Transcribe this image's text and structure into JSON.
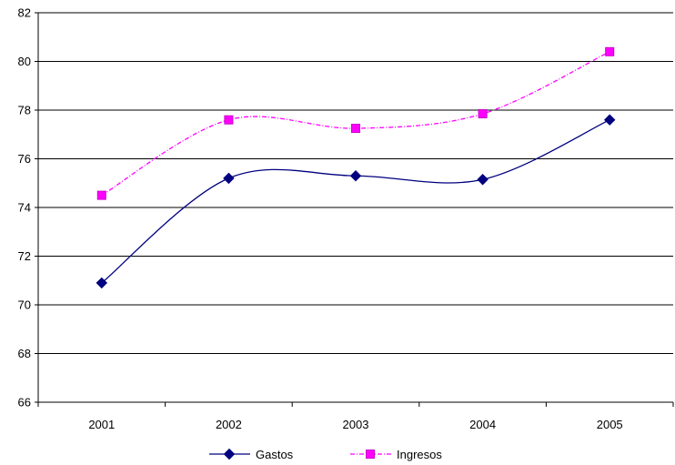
{
  "chart_data": {
    "type": "line",
    "categories": [
      "2001",
      "2002",
      "2003",
      "2004",
      "2005"
    ],
    "series": [
      {
        "name": "Gastos",
        "values": [
          70.9,
          75.2,
          75.3,
          75.15,
          77.6
        ],
        "color": "#000080",
        "marker": "diamond",
        "line": "solid"
      },
      {
        "name": "Ingresos",
        "values": [
          74.5,
          77.6,
          77.25,
          77.85,
          80.4
        ],
        "color": "#ff00ff",
        "marker": "square",
        "line": "dashed"
      }
    ],
    "ylim": [
      66,
      82
    ],
    "yticks": [
      66,
      68,
      70,
      72,
      74,
      76,
      78,
      80,
      82
    ],
    "grid": true,
    "legend_position": "bottom",
    "title": "",
    "xlabel": "",
    "ylabel": ""
  }
}
